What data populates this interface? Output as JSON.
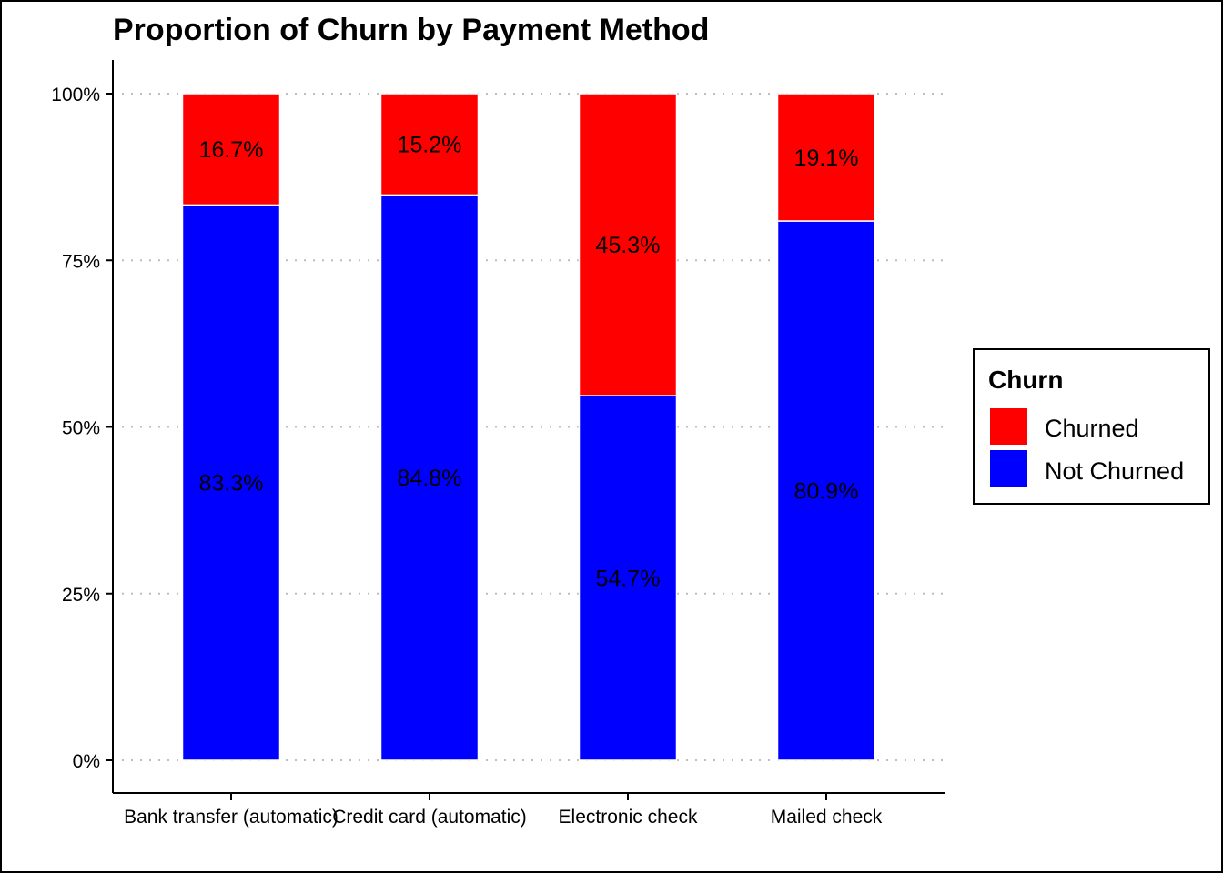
{
  "chart_data": {
    "type": "bar",
    "stacked": true,
    "title": "Proportion of Churn by Payment Method",
    "xlabel": "",
    "ylabel": "",
    "categories": [
      "Bank transfer (automatic)",
      "Credit card (automatic)",
      "Electronic check",
      "Mailed check"
    ],
    "series": [
      {
        "name": "Not Churned",
        "color": "#0000ff",
        "values": [
          83.3,
          84.8,
          54.7,
          80.9
        ],
        "labels": [
          "83.3%",
          "84.8%",
          "54.7%",
          "80.9%"
        ]
      },
      {
        "name": "Churned",
        "color": "#ff0000",
        "values": [
          16.7,
          15.2,
          45.3,
          19.1
        ],
        "labels": [
          "16.7%",
          "15.2%",
          "45.3%",
          "19.1%"
        ]
      }
    ],
    "ylim": [
      0,
      100
    ],
    "yticks": [
      0,
      25,
      50,
      75,
      100
    ],
    "ytick_labels": [
      "0%",
      "25%",
      "50%",
      "75%",
      "100%"
    ],
    "grid": "horizontal-dotted",
    "legend": {
      "title": "Churn",
      "placement": "right",
      "items": [
        {
          "label": "Churned",
          "color": "#ff0000"
        },
        {
          "label": "Not Churned",
          "color": "#0000ff"
        }
      ]
    }
  }
}
